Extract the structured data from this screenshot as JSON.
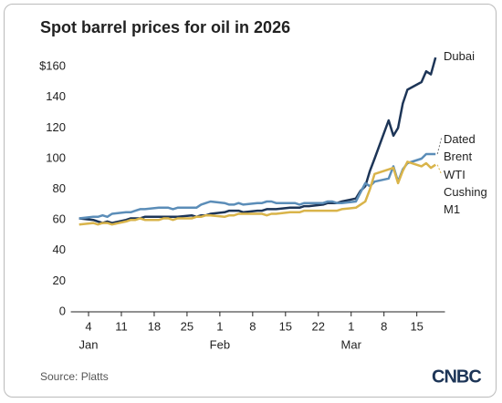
{
  "chart_data": {
    "type": "line",
    "title": "Spot barrel prices for oil in 2026",
    "source": "Source: Platts",
    "logo": "CNBC",
    "x": [
      "2026-01-02",
      "2026-01-05",
      "2026-01-06",
      "2026-01-07",
      "2026-01-08",
      "2026-01-09",
      "2026-01-12",
      "2026-01-13",
      "2026-01-14",
      "2026-01-15",
      "2026-01-16",
      "2026-01-19",
      "2026-01-20",
      "2026-01-21",
      "2026-01-22",
      "2026-01-23",
      "2026-01-26",
      "2026-01-27",
      "2026-01-28",
      "2026-01-29",
      "2026-01-30",
      "2026-02-02",
      "2026-02-03",
      "2026-02-04",
      "2026-02-05",
      "2026-02-06",
      "2026-02-09",
      "2026-02-10",
      "2026-02-11",
      "2026-02-12",
      "2026-02-13",
      "2026-02-16",
      "2026-02-17",
      "2026-02-18",
      "2026-02-19",
      "2026-02-20",
      "2026-02-23",
      "2026-02-24",
      "2026-02-25",
      "2026-02-26",
      "2026-02-27",
      "2026-03-02",
      "2026-03-03",
      "2026-03-04",
      "2026-03-05",
      "2026-03-06",
      "2026-03-09",
      "2026-03-10",
      "2026-03-11",
      "2026-03-12",
      "2026-03-13",
      "2026-03-16",
      "2026-03-17",
      "2026-03-18",
      "2026-03-19"
    ],
    "series": [
      {
        "name": "Dubai",
        "color": "#1d3557",
        "values": [
          61,
          60,
          59,
          58,
          59,
          58,
          60,
          61,
          61,
          61,
          62,
          62,
          62,
          62,
          62,
          62,
          63,
          62,
          63,
          63,
          64,
          65,
          66,
          66,
          66,
          65,
          66,
          66,
          67,
          67,
          67,
          68,
          68,
          68,
          69,
          69,
          70,
          71,
          71,
          71,
          72,
          74,
          79,
          82,
          92,
          100,
          125,
          115,
          120,
          136,
          145,
          150,
          157,
          155,
          166
        ]
      },
      {
        "name": "Dated Brent",
        "color": "#5b8db8",
        "values": [
          61,
          62,
          62,
          63,
          62,
          64,
          65,
          65,
          66,
          67,
          67,
          68,
          68,
          68,
          67,
          68,
          68,
          68,
          70,
          71,
          72,
          71,
          70,
          70,
          71,
          70,
          71,
          71,
          72,
          72,
          71,
          71,
          71,
          70,
          71,
          71,
          71,
          72,
          72,
          71,
          71,
          72,
          78,
          84,
          82,
          85,
          87,
          95,
          85,
          93,
          97,
          100,
          103,
          103,
          103
        ]
      },
      {
        "name": "WTI Cushing M1",
        "color": "#d9b44a",
        "values": [
          57,
          58,
          57,
          58,
          58,
          57,
          59,
          60,
          60,
          61,
          60,
          60,
          61,
          61,
          60,
          61,
          61,
          62,
          62,
          63,
          63,
          62,
          63,
          63,
          64,
          64,
          64,
          64,
          63,
          64,
          64,
          65,
          65,
          65,
          66,
          66,
          66,
          66,
          66,
          66,
          67,
          68,
          70,
          72,
          80,
          90,
          93,
          94,
          84,
          92,
          98,
          95,
          97,
          94,
          96
        ]
      }
    ],
    "xlim": [
      "2026-01-01",
      "2026-03-21"
    ],
    "xticks": [
      {
        "value": "2026-01-04",
        "label": "4"
      },
      {
        "value": "2026-01-11",
        "label": "11"
      },
      {
        "value": "2026-01-18",
        "label": "18"
      },
      {
        "value": "2026-01-25",
        "label": "25"
      },
      {
        "value": "2026-02-01",
        "label": "1"
      },
      {
        "value": "2026-02-08",
        "label": "8"
      },
      {
        "value": "2026-02-15",
        "label": "15"
      },
      {
        "value": "2026-02-22",
        "label": "22"
      },
      {
        "value": "2026-03-01",
        "label": "1"
      },
      {
        "value": "2026-03-08",
        "label": "8"
      },
      {
        "value": "2026-03-15",
        "label": "15"
      }
    ],
    "months": [
      {
        "value": "2026-01-04",
        "label": "Jan"
      },
      {
        "value": "2026-02-01",
        "label": "Feb"
      },
      {
        "value": "2026-03-01",
        "label": "Mar"
      }
    ],
    "ylim": [
      0,
      170
    ],
    "yticks": [
      0,
      20,
      40,
      60,
      80,
      100,
      120,
      {
        "value": 140,
        "label": "140"
      },
      {
        "value": 160,
        "label": "$160"
      }
    ],
    "grid": false
  }
}
